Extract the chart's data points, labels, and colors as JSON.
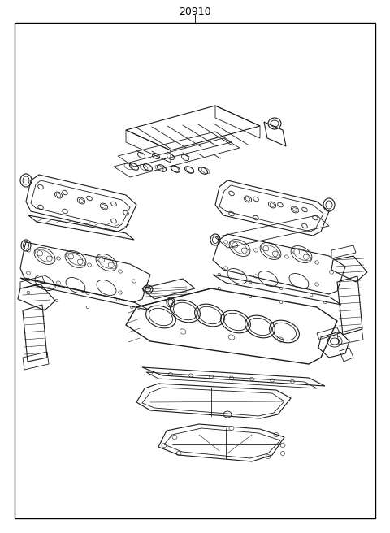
{
  "title": "20910",
  "bg_color": "#ffffff",
  "border_color": "#000000",
  "line_color": "#1a1a1a",
  "fig_width": 4.8,
  "fig_height": 6.56,
  "dpi": 100
}
